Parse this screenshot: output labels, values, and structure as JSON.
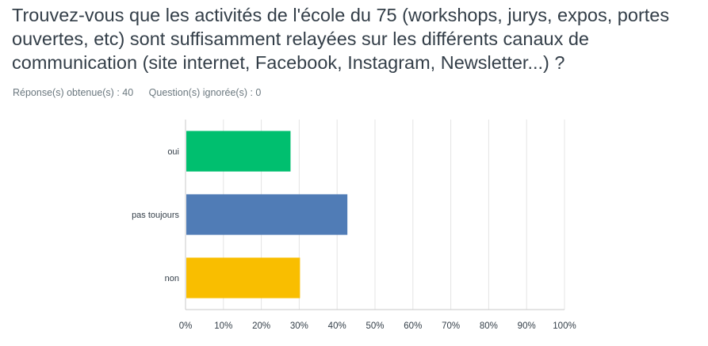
{
  "question": {
    "title": "Trouvez-vous que les activités de l'école du 75 (workshops, jurys, expos, portes ouvertes, etc) sont suffisamment relayées sur les différents canaux de communication (site internet, Facebook, Instagram, Newsletter...) ?",
    "answered": "Réponse(s) obtenue(s) : 40",
    "skipped": "Question(s) ignorée(s) : 0"
  },
  "chart_data": {
    "type": "bar",
    "orientation": "horizontal",
    "categories": [
      "oui",
      "pas toujours",
      "non"
    ],
    "values": [
      27.5,
      42.5,
      30
    ],
    "colors": [
      "#00bf6f",
      "#507cb6",
      "#f9be00"
    ],
    "xlim": [
      0,
      100
    ],
    "xticks": [
      "0%",
      "10%",
      "20%",
      "30%",
      "40%",
      "50%",
      "60%",
      "70%",
      "80%",
      "90%",
      "100%"
    ],
    "grid": true,
    "xlabel": "",
    "ylabel": ""
  }
}
